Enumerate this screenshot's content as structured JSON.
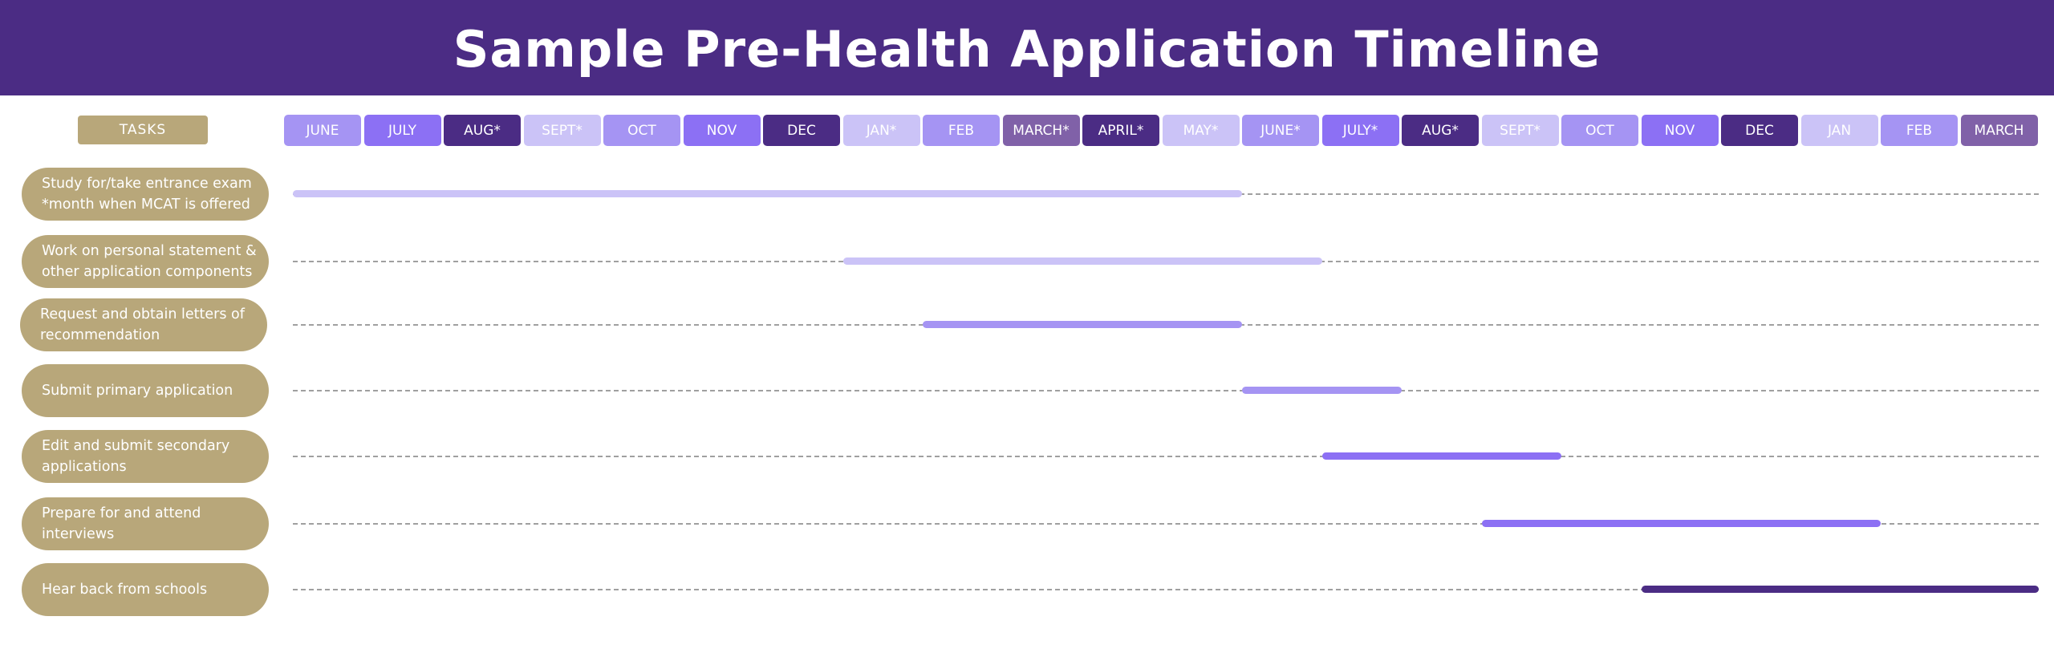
{
  "title": "Sample Pre-Health Application Timeline",
  "tasks_label": "TASKS",
  "colors": {
    "header_bg": "#4b2c84",
    "task_pill": "#b8a77a",
    "lavender_light": "#cbc3f7",
    "lavender": "#a594f3",
    "violet": "#8c70f4",
    "deep_purple": "#4b2c84",
    "muted_purple": "#8061a8"
  },
  "months": [
    {
      "label": "JUNE",
      "color": "#a594f3"
    },
    {
      "label": "JULY",
      "color": "#8c70f4"
    },
    {
      "label": "AUG*",
      "color": "#4b2c84"
    },
    {
      "label": "SEPT*",
      "color": "#cbc3f7"
    },
    {
      "label": "OCT",
      "color": "#a594f3"
    },
    {
      "label": "NOV",
      "color": "#8c70f4"
    },
    {
      "label": "DEC",
      "color": "#4b2c84"
    },
    {
      "label": "JAN*",
      "color": "#cbc3f7"
    },
    {
      "label": "FEB",
      "color": "#a594f3"
    },
    {
      "label": "MARCH*",
      "color": "#8061a8"
    },
    {
      "label": "APRIL*",
      "color": "#4b2c84"
    },
    {
      "label": "MAY*",
      "color": "#cbc3f7"
    },
    {
      "label": "JUNE*",
      "color": "#a594f3"
    },
    {
      "label": "JULY*",
      "color": "#8c70f4"
    },
    {
      "label": "AUG*",
      "color": "#4b2c84"
    },
    {
      "label": "SEPT*",
      "color": "#cbc3f7"
    },
    {
      "label": "OCT",
      "color": "#a594f3"
    },
    {
      "label": "NOV",
      "color": "#8c70f4"
    },
    {
      "label": "DEC",
      "color": "#4b2c84"
    },
    {
      "label": "JAN",
      "color": "#cbc3f7"
    },
    {
      "label": "FEB",
      "color": "#a594f3"
    },
    {
      "label": "MARCH",
      "color": "#8061a8"
    }
  ],
  "tasks": [
    {
      "label": "Study for/take entrance exam\n*month when MCAT is offered",
      "start": 0.1,
      "end": 12.0,
      "color": "#cbc3f7"
    },
    {
      "label": "Work on personal statement &\nother application components",
      "start": 7.0,
      "end": 13.0,
      "color": "#cbc3f7"
    },
    {
      "label": "Request and obtain letters of\nrecommendation",
      "start": 8.0,
      "end": 12.0,
      "color": "#a594f3"
    },
    {
      "label": "Submit primary application",
      "start": 12.0,
      "end": 14.0,
      "color": "#a594f3"
    },
    {
      "label": "Edit and submit secondary\napplications",
      "start": 13.0,
      "end": 16.0,
      "color": "#8c70f4"
    },
    {
      "label": "Prepare for and attend\ninterviews",
      "start": 15.0,
      "end": 20.0,
      "color": "#8c70f4"
    },
    {
      "label": "Hear back from schools",
      "start": 17.0,
      "end": 22.0,
      "color": "#4b2c84"
    }
  ]
}
